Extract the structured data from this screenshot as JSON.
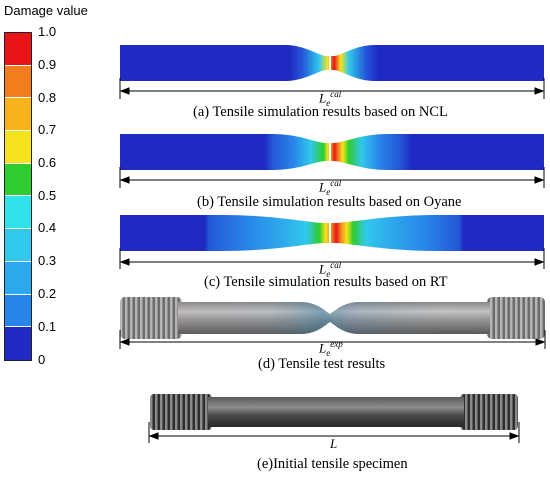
{
  "legend": {
    "title": "Damage value",
    "ticks": [
      "1.0",
      "0.9",
      "0.8",
      "0.7",
      "0.6",
      "0.5",
      "0.4",
      "0.3",
      "0.2",
      "0.1",
      "0"
    ],
    "colors": [
      "#e8141a",
      "#f07d1e",
      "#f6b31a",
      "#f7e31c",
      "#2ecc30",
      "#31e3e8",
      "#31c8ec",
      "#2ea8ec",
      "#2886e8",
      "#2457d8",
      "#1e2ac2"
    ]
  },
  "panels": [
    {
      "caption": "(a) Tensile simulation results based on NCL",
      "length_symbol": "L",
      "length_sub": "e",
      "length_sup": "cal"
    },
    {
      "caption": "(b) Tensile simulation results based on Oyane",
      "length_symbol": "L",
      "length_sub": "e",
      "length_sup": "cal"
    },
    {
      "caption": "(c) Tensile simulation results based on RT",
      "length_symbol": "L",
      "length_sub": "e",
      "length_sup": "cal"
    },
    {
      "caption": "(d) Tensile test results",
      "length_symbol": "L",
      "length_sub": "e",
      "length_sup": "exp"
    },
    {
      "caption": "(e)Initial tensile specimen",
      "length_symbol": "L",
      "length_sub": "",
      "length_sup": ""
    }
  ]
}
